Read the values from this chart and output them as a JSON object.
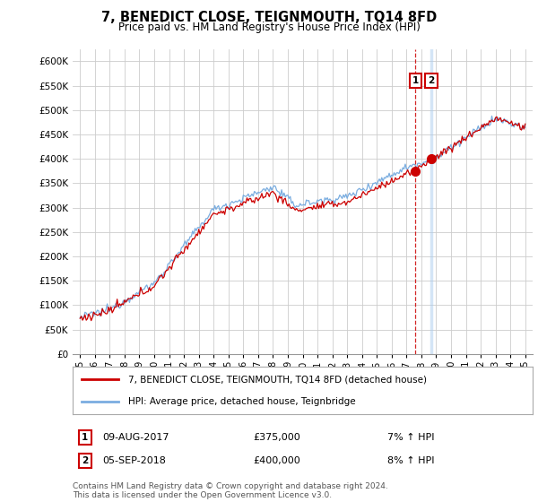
{
  "title": "7, BENEDICT CLOSE, TEIGNMOUTH, TQ14 8FD",
  "subtitle": "Price paid vs. HM Land Registry's House Price Index (HPI)",
  "legend_line1": "7, BENEDICT CLOSE, TEIGNMOUTH, TQ14 8FD (detached house)",
  "legend_line2": "HPI: Average price, detached house, Teignbridge",
  "annotation1_date": "09-AUG-2017",
  "annotation1_price": "£375,000",
  "annotation1_hpi": "7% ↑ HPI",
  "annotation2_date": "05-SEP-2018",
  "annotation2_price": "£400,000",
  "annotation2_hpi": "8% ↑ HPI",
  "footer": "Contains HM Land Registry data © Crown copyright and database right 2024.\nThis data is licensed under the Open Government Licence v3.0.",
  "ylabel_ticks": [
    "£0",
    "£50K",
    "£100K",
    "£150K",
    "£200K",
    "£250K",
    "£300K",
    "£350K",
    "£400K",
    "£450K",
    "£500K",
    "£550K",
    "£600K"
  ],
  "ytick_values": [
    0,
    50000,
    100000,
    150000,
    200000,
    250000,
    300000,
    350000,
    400000,
    450000,
    500000,
    550000,
    600000
  ],
  "sale1_year": 2017.6,
  "sale1_price": 375000,
  "sale2_year": 2018.67,
  "sale2_price": 400000,
  "line_color_red": "#cc0000",
  "line_color_blue": "#7aade0",
  "vline1_color": "#cc0000",
  "vline2_color": "#aaccee",
  "box_edge_color": "#cc0000",
  "background_color": "#ffffff",
  "grid_color": "#cccccc"
}
